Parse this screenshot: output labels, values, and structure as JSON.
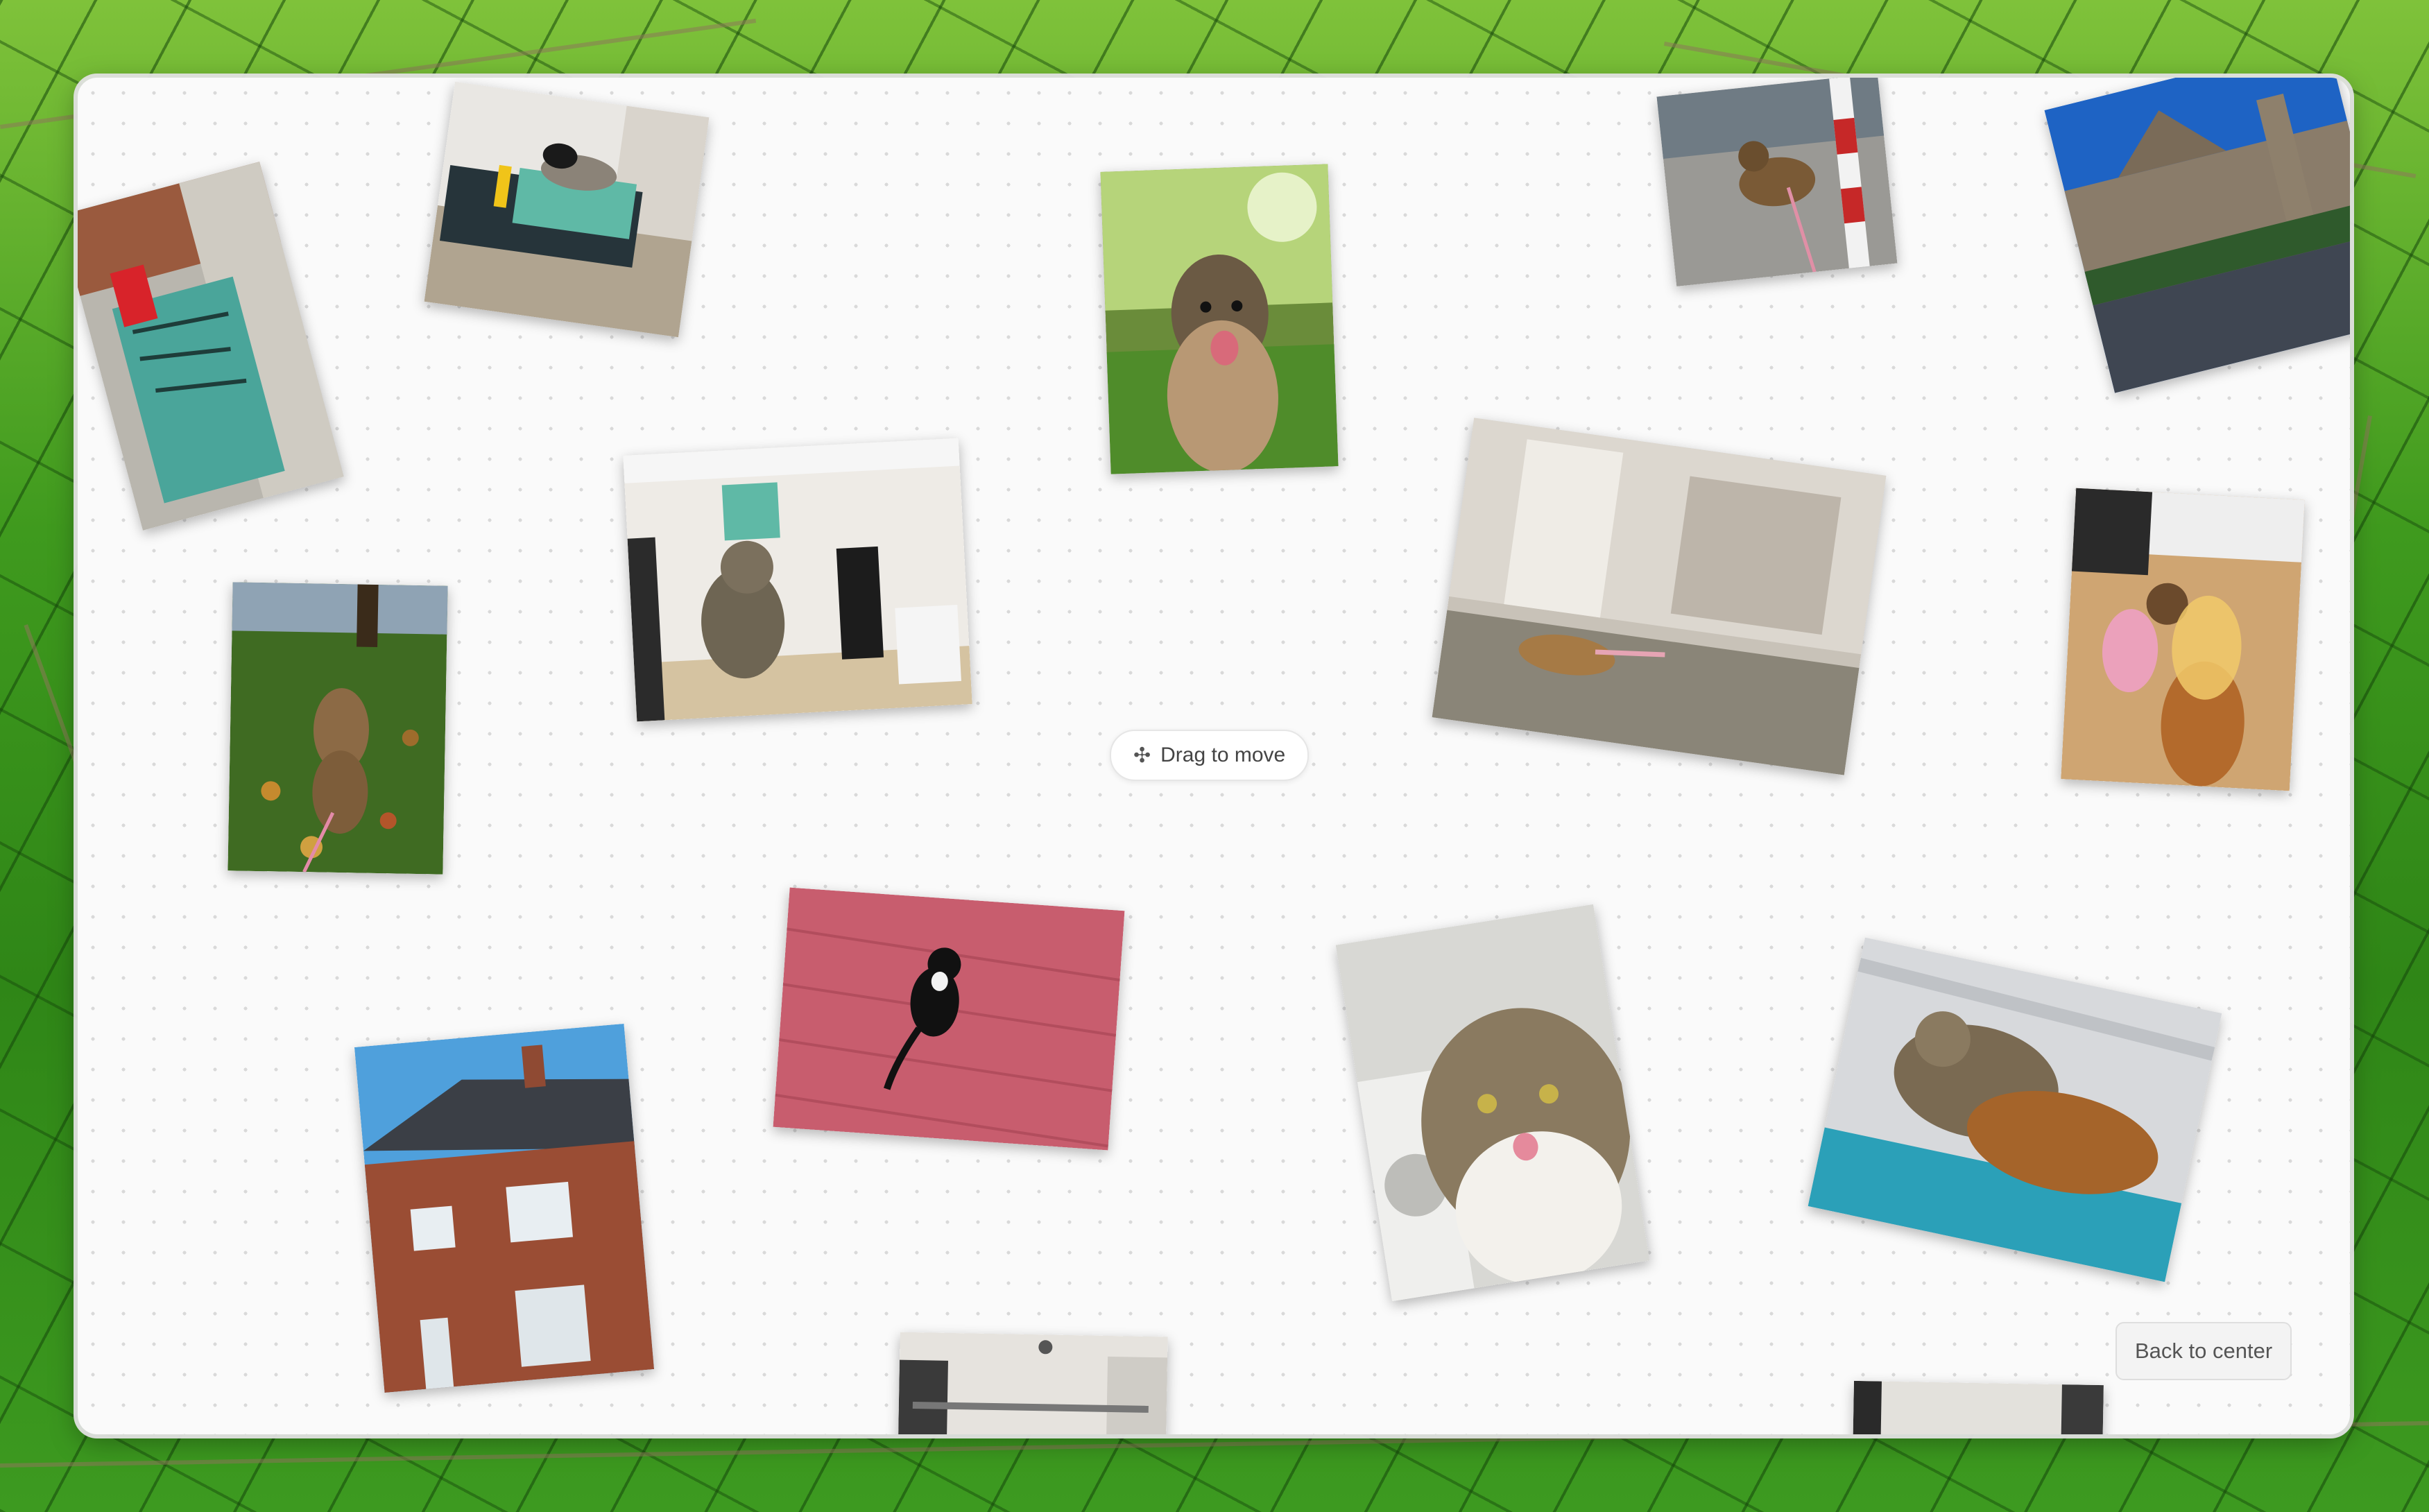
{
  "hint": {
    "icon": "move-icon",
    "icon_glyph": "✣",
    "label": "Drag to move"
  },
  "back_button": {
    "label": "Back to center"
  },
  "photos": [
    {
      "id": "photo-teal-box-wall",
      "subject": "teal box by brick wall"
    },
    {
      "id": "photo-cats-on-chair",
      "subject": "cats on chair"
    },
    {
      "id": "photo-dog-park-selfie",
      "subject": "dog in park"
    },
    {
      "id": "photo-dog-on-sidewalk",
      "subject": "dog on sidewalk"
    },
    {
      "id": "photo-cathedral",
      "subject": "cathedral street"
    },
    {
      "id": "photo-cat-kitchen",
      "subject": "cat on kitchen counter"
    },
    {
      "id": "photo-dog-running-blur",
      "subject": "dog running blurred"
    },
    {
      "id": "photo-dog-autumn-leaves",
      "subject": "dog in autumn leaves"
    },
    {
      "id": "photo-dog-butterfly-wings",
      "subject": "dog with butterfly wings"
    },
    {
      "id": "photo-cat-red-floor",
      "subject": "cat on red floor"
    },
    {
      "id": "photo-cat-tongue",
      "subject": "cat sticking out tongue"
    },
    {
      "id": "photo-cats-cuddling",
      "subject": "cats cuddling on blanket"
    },
    {
      "id": "photo-brick-house",
      "subject": "brick house"
    },
    {
      "id": "photo-hallway-partial",
      "subject": "hallway"
    },
    {
      "id": "photo-partial-bottom-right",
      "subject": "room"
    }
  ],
  "colors": {
    "canvas": "#fafafa",
    "dot": "#d9d9d9",
    "text": "#444444"
  }
}
